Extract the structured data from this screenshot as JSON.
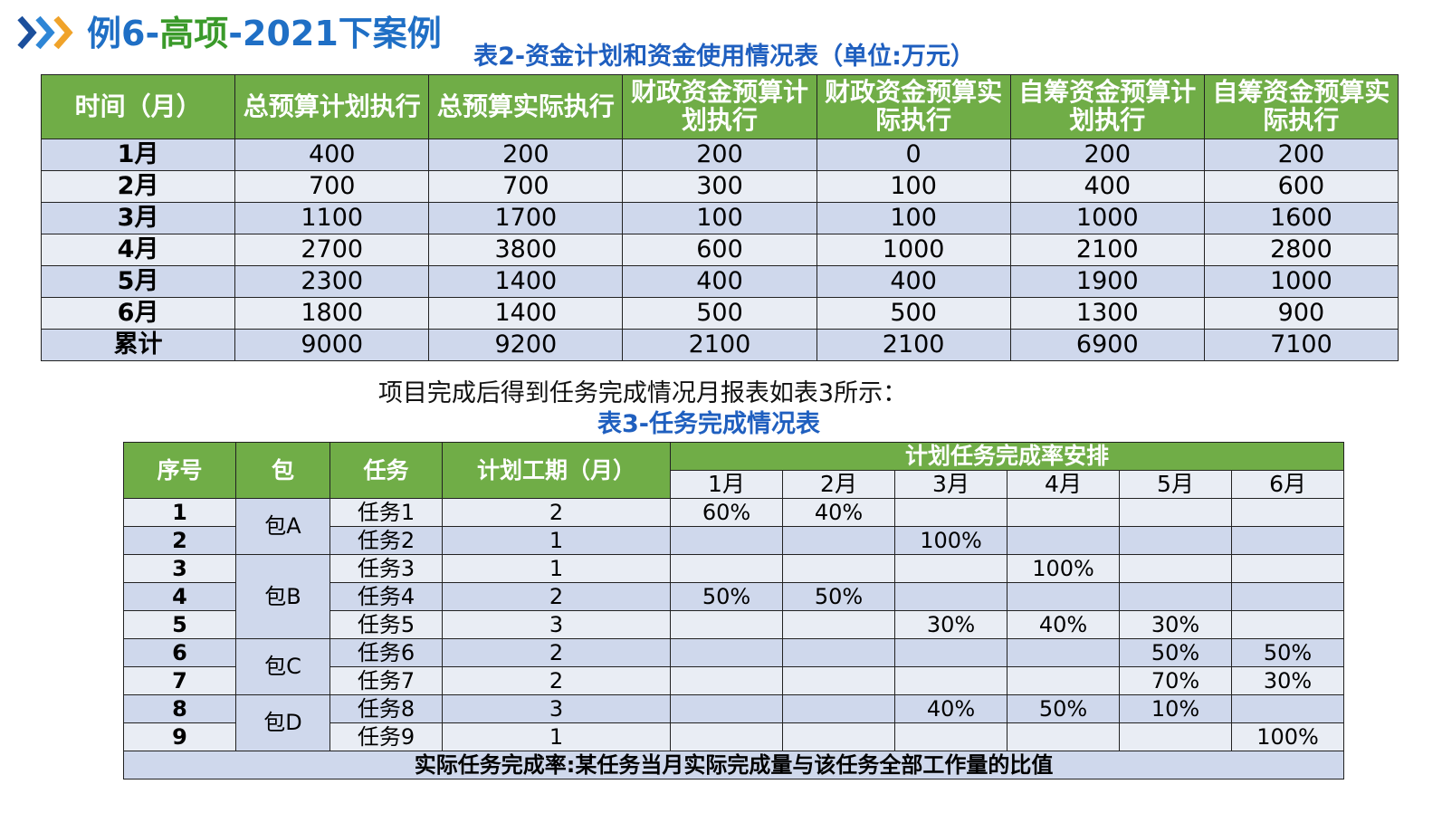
{
  "header": {
    "title_parts": [
      "例6-",
      "高项",
      "-2021下案例"
    ]
  },
  "table2": {
    "caption": "表2-资金计划和资金使用情况表（单位:万元）",
    "columns": [
      "时间（月）",
      "总预算计划执行",
      "总预算实际执行",
      "财政资金预算计划执行",
      "财政资金预算实际执行",
      "自筹资金预算计划执行",
      "自筹资金预算实际执行"
    ],
    "rows": [
      [
        "1月",
        400,
        200,
        200,
        0,
        200,
        200
      ],
      [
        "2月",
        700,
        700,
        300,
        100,
        400,
        600
      ],
      [
        "3月",
        1100,
        1700,
        100,
        100,
        1000,
        1600
      ],
      [
        "4月",
        2700,
        3800,
        600,
        1000,
        2100,
        2800
      ],
      [
        "5月",
        2300,
        1400,
        400,
        400,
        1900,
        1000
      ],
      [
        "6月",
        1800,
        1400,
        500,
        500,
        1300,
        900
      ],
      [
        "累计",
        9000,
        9200,
        2100,
        2100,
        6900,
        7100
      ]
    ]
  },
  "note": "项目完成后得到任务完成情况月报表如表3所示：",
  "table3": {
    "caption": "表3-任务完成情况表",
    "columns": [
      "序号",
      "包",
      "任务",
      "计划工期（月）"
    ],
    "group_header": "计划任务完成率安排",
    "months": [
      "1月",
      "2月",
      "3月",
      "4月",
      "5月",
      "6月"
    ],
    "rows": [
      {
        "no": 1,
        "package": "包A",
        "task": "任务1",
        "duration": 2,
        "rates": [
          "60%",
          "40%",
          null,
          null,
          null,
          null
        ]
      },
      {
        "no": 2,
        "package": null,
        "task": "任务2",
        "duration": 1,
        "rates": [
          null,
          null,
          "100%",
          null,
          null,
          null
        ]
      },
      {
        "no": 3,
        "package": "包B",
        "task": "任务3",
        "duration": 1,
        "rates": [
          null,
          null,
          null,
          "100%",
          null,
          null
        ]
      },
      {
        "no": 4,
        "package": null,
        "task": "任务4",
        "duration": 2,
        "rates": [
          "50%",
          "50%",
          null,
          null,
          null,
          null
        ]
      },
      {
        "no": 5,
        "package": null,
        "task": "任务5",
        "duration": 3,
        "rates": [
          null,
          null,
          "30%",
          "40%",
          "30%",
          null
        ]
      },
      {
        "no": 6,
        "package": "包C",
        "task": "任务6",
        "duration": 2,
        "rates": [
          null,
          null,
          null,
          null,
          "50%",
          "50%"
        ]
      },
      {
        "no": 7,
        "package": null,
        "task": "任务7",
        "duration": 2,
        "rates": [
          null,
          null,
          null,
          null,
          "70%",
          "30%"
        ]
      },
      {
        "no": 8,
        "package": "包D",
        "task": "任务8",
        "duration": 3,
        "rates": [
          null,
          null,
          "40%",
          "50%",
          "10%",
          null
        ]
      },
      {
        "no": 9,
        "package": null,
        "task": "任务9",
        "duration": 1,
        "rates": [
          null,
          null,
          null,
          null,
          null,
          "100%"
        ]
      }
    ],
    "footer": "实际任务完成率:某任务当月实际完成量与该任务全部工作量的比值"
  }
}
